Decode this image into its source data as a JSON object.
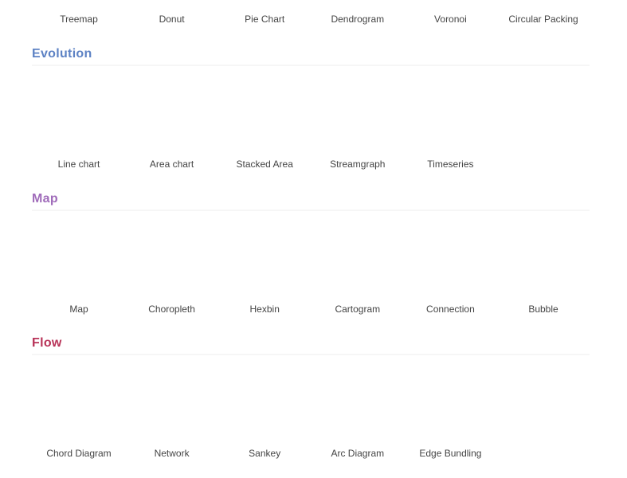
{
  "top_row": {
    "items": [
      "Treemap",
      "Donut",
      "Pie Chart",
      "Dendrogram",
      "Voronoi",
      "Circular Packing"
    ]
  },
  "sections": [
    {
      "title": "Evolution",
      "items": [
        "Line chart",
        "Area chart",
        "Stacked Area",
        "Streamgraph",
        "Timeseries"
      ]
    },
    {
      "title": "Map",
      "items": [
        "Map",
        "Choropleth",
        "Hexbin",
        "Cartogram",
        "Connection",
        "Bubble"
      ]
    },
    {
      "title": "Flow",
      "items": [
        "Chord Diagram",
        "Network",
        "Sankey",
        "Arc Diagram",
        "Edge Bundling"
      ]
    }
  ]
}
